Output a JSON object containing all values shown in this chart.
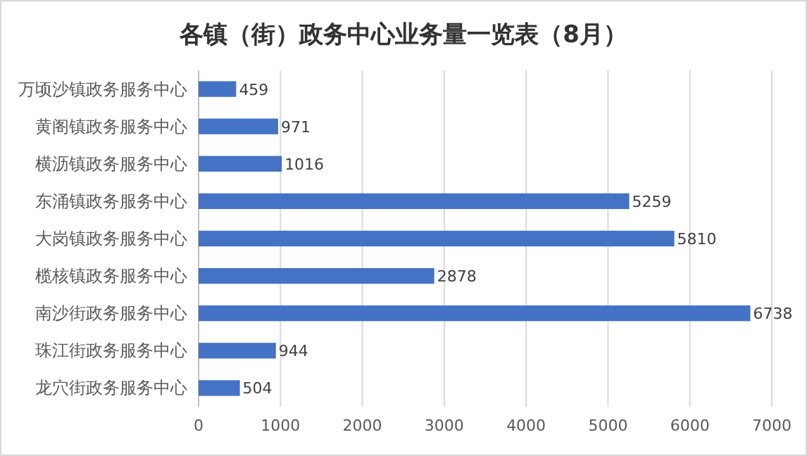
{
  "chart_data": {
    "type": "bar",
    "orientation": "horizontal",
    "title": "各镇（街）政务中心业务量一览表（8月）",
    "categories": [
      "万顷沙镇政务服务中心",
      "黄阁镇政务服务中心",
      "横沥镇政务服务中心",
      "东涌镇政务服务中心",
      "大岗镇政务服务中心",
      "榄核镇政务服务中心",
      "南沙街政务服务中心",
      "珠江街政务服务中心",
      "龙穴街政务服务中心"
    ],
    "values": [
      459,
      971,
      1016,
      5259,
      5810,
      2878,
      6738,
      944,
      504
    ],
    "color": "#4472c4",
    "xlim": [
      0,
      7000
    ],
    "xticks": [
      0,
      1000,
      2000,
      3000,
      4000,
      5000,
      6000,
      7000
    ],
    "grid": "x",
    "data_labels": true
  }
}
